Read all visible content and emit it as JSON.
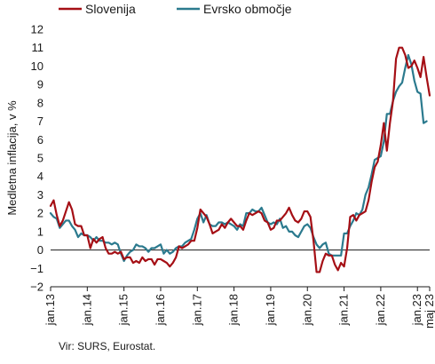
{
  "chart_data": {
    "type": "line",
    "title": "",
    "ylabel": "Medletna inflacija, v %",
    "xlabel": "",
    "ylim": [
      -2,
      12
    ],
    "yticks": [
      -2,
      -1,
      0,
      1,
      2,
      3,
      4,
      5,
      6,
      7,
      8,
      9,
      10,
      11,
      12
    ],
    "xlim": [
      "2013-01",
      "2023-05"
    ],
    "xtick_labels": [
      "jan.13",
      "jan.14",
      "jan.15",
      "jan.16",
      "jan.17",
      "jan.18",
      "jan.19",
      "jan.20",
      "jan.21",
      "jan.22",
      "jan.23",
      "maj 23"
    ],
    "grid": false,
    "legend_position": "top",
    "source": "Vir: SURS, Eurostat.",
    "series": [
      {
        "name": "Slovenija",
        "color": "#a50f15",
        "points": [
          [
            "2013-01",
            2.4
          ],
          [
            "2013-02",
            2.7
          ],
          [
            "2013-03",
            1.9
          ],
          [
            "2013-04",
            1.3
          ],
          [
            "2013-05",
            1.6
          ],
          [
            "2013-06",
            2.1
          ],
          [
            "2013-07",
            2.6
          ],
          [
            "2013-08",
            2.2
          ],
          [
            "2013-09",
            1.4
          ],
          [
            "2013-10",
            1.3
          ],
          [
            "2013-11",
            1.3
          ],
          [
            "2013-12",
            0.8
          ],
          [
            "2014-01",
            0.8
          ],
          [
            "2014-02",
            0.1
          ],
          [
            "2014-03",
            0.6
          ],
          [
            "2014-04",
            0.4
          ],
          [
            "2014-05",
            0.6
          ],
          [
            "2014-06",
            0.7
          ],
          [
            "2014-07",
            0.1
          ],
          [
            "2014-08",
            -0.2
          ],
          [
            "2014-09",
            -0.2
          ],
          [
            "2014-10",
            -0.1
          ],
          [
            "2014-11",
            -0.2
          ],
          [
            "2014-12",
            -0.1
          ],
          [
            "2015-01",
            -0.5
          ],
          [
            "2015-02",
            -0.4
          ],
          [
            "2015-03",
            -0.4
          ],
          [
            "2015-04",
            -0.7
          ],
          [
            "2015-05",
            -0.6
          ],
          [
            "2015-06",
            -0.7
          ],
          [
            "2015-07",
            -0.4
          ],
          [
            "2015-08",
            -0.6
          ],
          [
            "2015-09",
            -0.5
          ],
          [
            "2015-10",
            -0.5
          ],
          [
            "2015-11",
            -0.8
          ],
          [
            "2015-12",
            -0.5
          ],
          [
            "2016-01",
            -0.5
          ],
          [
            "2016-02",
            -0.6
          ],
          [
            "2016-03",
            -0.7
          ],
          [
            "2016-04",
            -0.9
          ],
          [
            "2016-05",
            -0.7
          ],
          [
            "2016-06",
            -0.4
          ],
          [
            "2016-07",
            0.2
          ],
          [
            "2016-08",
            0.1
          ],
          [
            "2016-09",
            0.2
          ],
          [
            "2016-10",
            0.3
          ],
          [
            "2016-11",
            0.5
          ],
          [
            "2016-12",
            0.5
          ],
          [
            "2017-01",
            1.2
          ],
          [
            "2017-02",
            2.2
          ],
          [
            "2017-03",
            2.0
          ],
          [
            "2017-04",
            1.8
          ],
          [
            "2017-05",
            1.4
          ],
          [
            "2017-06",
            0.9
          ],
          [
            "2017-07",
            1.0
          ],
          [
            "2017-08",
            1.1
          ],
          [
            "2017-09",
            1.4
          ],
          [
            "2017-10",
            1.2
          ],
          [
            "2017-11",
            1.5
          ],
          [
            "2017-12",
            1.7
          ],
          [
            "2018-01",
            1.5
          ],
          [
            "2018-02",
            1.3
          ],
          [
            "2018-03",
            1.3
          ],
          [
            "2018-04",
            1.1
          ],
          [
            "2018-05",
            1.6
          ],
          [
            "2018-06",
            2.0
          ],
          [
            "2018-07",
            1.9
          ],
          [
            "2018-08",
            2.0
          ],
          [
            "2018-09",
            2.1
          ],
          [
            "2018-10",
            2.0
          ],
          [
            "2018-11",
            1.6
          ],
          [
            "2018-12",
            1.5
          ],
          [
            "2019-01",
            1.1
          ],
          [
            "2019-02",
            1.2
          ],
          [
            "2019-03",
            1.6
          ],
          [
            "2019-04",
            1.6
          ],
          [
            "2019-05",
            1.8
          ],
          [
            "2019-06",
            2.0
          ],
          [
            "2019-07",
            2.3
          ],
          [
            "2019-08",
            1.9
          ],
          [
            "2019-09",
            1.6
          ],
          [
            "2019-10",
            1.5
          ],
          [
            "2019-11",
            1.7
          ],
          [
            "2019-12",
            2.1
          ],
          [
            "2020-01",
            2.1
          ],
          [
            "2020-02",
            1.8
          ],
          [
            "2020-03",
            0.5
          ],
          [
            "2020-04",
            -1.2
          ],
          [
            "2020-05",
            -1.2
          ],
          [
            "2020-06",
            -0.6
          ],
          [
            "2020-07",
            -0.2
          ],
          [
            "2020-08",
            -0.3
          ],
          [
            "2020-09",
            -0.3
          ],
          [
            "2020-10",
            -0.8
          ],
          [
            "2020-11",
            -1.1
          ],
          [
            "2020-12",
            -0.7
          ],
          [
            "2021-01",
            -0.9
          ],
          [
            "2021-02",
            0.1
          ],
          [
            "2021-03",
            1.8
          ],
          [
            "2021-04",
            1.9
          ],
          [
            "2021-05",
            1.6
          ],
          [
            "2021-06",
            1.9
          ],
          [
            "2021-07",
            2.0
          ],
          [
            "2021-08",
            2.1
          ],
          [
            "2021-09",
            2.7
          ],
          [
            "2021-10",
            3.7
          ],
          [
            "2021-11",
            4.5
          ],
          [
            "2021-12",
            4.8
          ],
          [
            "2022-01",
            5.7
          ],
          [
            "2022-02",
            6.9
          ],
          [
            "2022-03",
            5.4
          ],
          [
            "2022-04",
            6.9
          ],
          [
            "2022-05",
            8.1
          ],
          [
            "2022-06",
            10.4
          ],
          [
            "2022-07",
            11.0
          ],
          [
            "2022-08",
            11.0
          ],
          [
            "2022-09",
            10.6
          ],
          [
            "2022-10",
            9.9
          ],
          [
            "2022-11",
            10.0
          ],
          [
            "2022-12",
            10.3
          ],
          [
            "2023-01",
            9.9
          ],
          [
            "2023-02",
            9.4
          ],
          [
            "2023-03",
            10.5
          ],
          [
            "2023-04",
            9.4
          ],
          [
            "2023-05",
            8.4
          ]
        ]
      },
      {
        "name": "Evrsko območje",
        "color": "#2b7a8e",
        "points": [
          [
            "2013-01",
            2.0
          ],
          [
            "2013-02",
            1.8
          ],
          [
            "2013-03",
            1.7
          ],
          [
            "2013-04",
            1.2
          ],
          [
            "2013-05",
            1.4
          ],
          [
            "2013-06",
            1.6
          ],
          [
            "2013-07",
            1.6
          ],
          [
            "2013-08",
            1.3
          ],
          [
            "2013-09",
            1.1
          ],
          [
            "2013-10",
            0.7
          ],
          [
            "2013-11",
            0.9
          ],
          [
            "2013-12",
            0.8
          ],
          [
            "2014-01",
            0.8
          ],
          [
            "2014-02",
            0.7
          ],
          [
            "2014-03",
            0.5
          ],
          [
            "2014-04",
            0.7
          ],
          [
            "2014-05",
            0.5
          ],
          [
            "2014-06",
            0.5
          ],
          [
            "2014-07",
            0.4
          ],
          [
            "2014-08",
            0.4
          ],
          [
            "2014-09",
            0.3
          ],
          [
            "2014-10",
            0.4
          ],
          [
            "2014-11",
            0.3
          ],
          [
            "2014-12",
            -0.2
          ],
          [
            "2015-01",
            -0.6
          ],
          [
            "2015-02",
            -0.3
          ],
          [
            "2015-03",
            -0.1
          ],
          [
            "2015-04",
            0.0
          ],
          [
            "2015-05",
            0.3
          ],
          [
            "2015-06",
            0.2
          ],
          [
            "2015-07",
            0.2
          ],
          [
            "2015-08",
            0.1
          ],
          [
            "2015-09",
            -0.1
          ],
          [
            "2015-10",
            0.1
          ],
          [
            "2015-11",
            0.1
          ],
          [
            "2015-12",
            0.2
          ],
          [
            "2016-01",
            0.3
          ],
          [
            "2016-02",
            -0.2
          ],
          [
            "2016-03",
            0.0
          ],
          [
            "2016-04",
            -0.2
          ],
          [
            "2016-05",
            -0.1
          ],
          [
            "2016-06",
            0.1
          ],
          [
            "2016-07",
            0.2
          ],
          [
            "2016-08",
            0.2
          ],
          [
            "2016-09",
            0.4
          ],
          [
            "2016-10",
            0.5
          ],
          [
            "2016-11",
            0.6
          ],
          [
            "2016-12",
            1.1
          ],
          [
            "2017-01",
            1.7
          ],
          [
            "2017-02",
            2.0
          ],
          [
            "2017-03",
            1.5
          ],
          [
            "2017-04",
            1.9
          ],
          [
            "2017-05",
            1.4
          ],
          [
            "2017-06",
            1.3
          ],
          [
            "2017-07",
            1.3
          ],
          [
            "2017-08",
            1.5
          ],
          [
            "2017-09",
            1.5
          ],
          [
            "2017-10",
            1.4
          ],
          [
            "2017-11",
            1.5
          ],
          [
            "2017-12",
            1.4
          ],
          [
            "2018-01",
            1.3
          ],
          [
            "2018-02",
            1.1
          ],
          [
            "2018-03",
            1.4
          ],
          [
            "2018-04",
            1.3
          ],
          [
            "2018-05",
            2.0
          ],
          [
            "2018-06",
            2.0
          ],
          [
            "2018-07",
            2.2
          ],
          [
            "2018-08",
            2.1
          ],
          [
            "2018-09",
            2.1
          ],
          [
            "2018-10",
            2.3
          ],
          [
            "2018-11",
            1.9
          ],
          [
            "2018-12",
            1.5
          ],
          [
            "2019-01",
            1.4
          ],
          [
            "2019-02",
            1.5
          ],
          [
            "2019-03",
            1.4
          ],
          [
            "2019-04",
            1.7
          ],
          [
            "2019-05",
            1.2
          ],
          [
            "2019-06",
            1.3
          ],
          [
            "2019-07",
            1.0
          ],
          [
            "2019-08",
            1.0
          ],
          [
            "2019-09",
            0.8
          ],
          [
            "2019-10",
            0.7
          ],
          [
            "2019-11",
            1.0
          ],
          [
            "2019-12",
            1.3
          ],
          [
            "2020-01",
            1.4
          ],
          [
            "2020-02",
            1.2
          ],
          [
            "2020-03",
            0.7
          ],
          [
            "2020-04",
            0.3
          ],
          [
            "2020-05",
            0.1
          ],
          [
            "2020-06",
            0.3
          ],
          [
            "2020-07",
            0.4
          ],
          [
            "2020-08",
            -0.2
          ],
          [
            "2020-09",
            -0.3
          ],
          [
            "2020-10",
            -0.3
          ],
          [
            "2020-11",
            -0.3
          ],
          [
            "2020-12",
            -0.3
          ],
          [
            "2021-01",
            0.9
          ],
          [
            "2021-02",
            0.9
          ],
          [
            "2021-03",
            1.3
          ],
          [
            "2021-04",
            1.6
          ],
          [
            "2021-05",
            2.0
          ],
          [
            "2021-06",
            1.9
          ],
          [
            "2021-07",
            2.2
          ],
          [
            "2021-08",
            3.0
          ],
          [
            "2021-09",
            3.4
          ],
          [
            "2021-10",
            4.1
          ],
          [
            "2021-11",
            4.9
          ],
          [
            "2021-12",
            5.0
          ],
          [
            "2022-01",
            5.1
          ],
          [
            "2022-02",
            5.9
          ],
          [
            "2022-03",
            7.4
          ],
          [
            "2022-04",
            7.4
          ],
          [
            "2022-05",
            8.1
          ],
          [
            "2022-06",
            8.6
          ],
          [
            "2022-07",
            8.9
          ],
          [
            "2022-08",
            9.1
          ],
          [
            "2022-09",
            9.9
          ],
          [
            "2022-10",
            10.6
          ],
          [
            "2022-11",
            10.1
          ],
          [
            "2022-12",
            9.2
          ],
          [
            "2023-01",
            8.6
          ],
          [
            "2023-02",
            8.5
          ],
          [
            "2023-03",
            6.9
          ],
          [
            "2023-04",
            7.0
          ]
        ]
      }
    ]
  }
}
